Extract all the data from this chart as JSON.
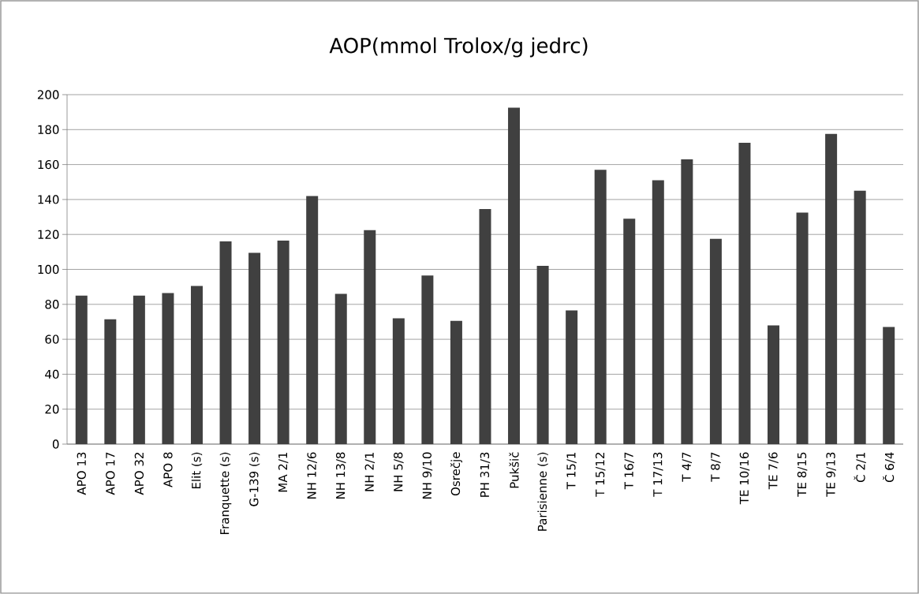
{
  "chart_data": {
    "type": "bar",
    "title": "AOP(mmol Trolox/g jedrc)",
    "categories": [
      "APO 13",
      "APO 17",
      "APO 32",
      "APO 8",
      "Elit (s)",
      "Franquette (s)",
      "G-139 (s)",
      "MA 2/1",
      "NH 12/6",
      "NH 13/8",
      "NH 2/1",
      "NH 5/8",
      "NH 9/10",
      "Osrečje",
      "PH 31/3",
      "Pukšič",
      "Parisienne (s)",
      "T 15/1",
      "T 15/12",
      "T 16/7",
      "T 17/13",
      "T 4/7",
      "T 8/7",
      "TE 10/16",
      "TE 7/6",
      "TE 8/15",
      "TE 9/13",
      "Č 2/1",
      "Č 6/4"
    ],
    "values": [
      85,
      71.5,
      85,
      86.5,
      90.5,
      116,
      109.5,
      116.5,
      142,
      86,
      122.5,
      72,
      96.5,
      70.5,
      134.5,
      192.5,
      102,
      76.5,
      157,
      129,
      151,
      163,
      117.5,
      172.5,
      68,
      132.5,
      177.5,
      145,
      67
    ],
    "color": "#404040",
    "ylim": [
      0,
      200
    ],
    "yticks": [
      0,
      20,
      40,
      60,
      80,
      100,
      120,
      140,
      160,
      180,
      200
    ],
    "grid": "y"
  }
}
